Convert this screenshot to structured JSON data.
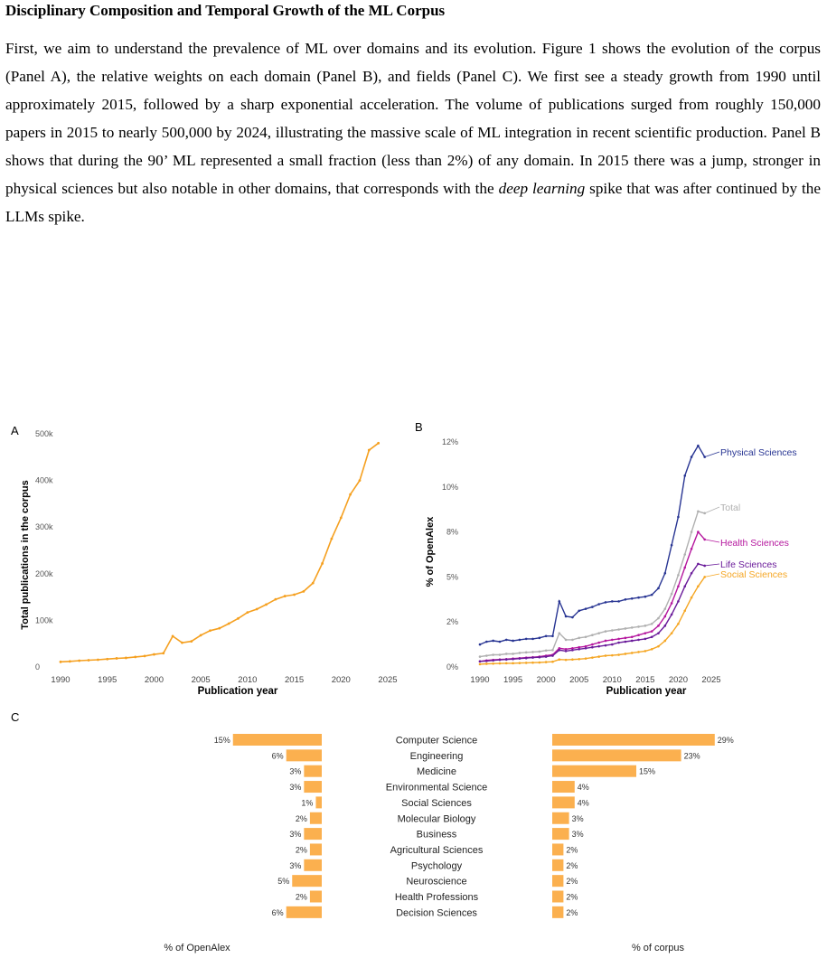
{
  "heading": "Disciplinary Composition and Temporal Growth of the ML Corpus",
  "paragraph": {
    "before_emphasis": "First, we aim to understand the prevalence of ML over domains and its evolution. Figure 1 shows the evolution of the corpus (Panel A), the relative weights on each domain (Panel B), and fields (Panel C). We first see a steady growth from 1990 until approximately 2015, followed by a sharp exponential acceleration. The volume of publications surged from roughly 150,000 papers in 2015 to nearly 500,000 by 2024, illustrating the massive scale of ML integration in recent scientific production. Panel B shows that during the 90’ ML represented a small fraction (less than 2%) of any domain. In 2015 there was a jump, stronger in physical sciences but also notable in other domains, that corresponds with the ",
    "emphasis": "deep learning",
    "after_emphasis": " spike that was after continued by the LLMs spike."
  },
  "chart_data": [
    {
      "panel": "A",
      "type": "line",
      "xlabel": "Publication year",
      "ylabel": "Total publications in the corpus",
      "xlim": [
        1990,
        2025
      ],
      "ylim": [
        0,
        500000
      ],
      "x_ticks": [
        "1990",
        "1995",
        "2000",
        "2005",
        "2010",
        "2015",
        "2020",
        "2025"
      ],
      "y_ticks": [
        "0",
        "100k",
        "200k",
        "300k",
        "400k",
        "500k"
      ],
      "color": "#f5a020",
      "x": [
        1990,
        1991,
        1992,
        1993,
        1994,
        1995,
        1996,
        1997,
        1998,
        1999,
        2000,
        2001,
        2002,
        2003,
        2004,
        2005,
        2006,
        2007,
        2008,
        2009,
        2010,
        2011,
        2012,
        2013,
        2014,
        2015,
        2016,
        2017,
        2018,
        2019,
        2020,
        2021,
        2022,
        2023,
        2024
      ],
      "values": [
        11000,
        12000,
        13500,
        14500,
        15500,
        17000,
        18500,
        19500,
        21500,
        23500,
        27000,
        29500,
        66000,
        52000,
        55000,
        68000,
        78000,
        83000,
        93000,
        104000,
        117000,
        124000,
        134000,
        145000,
        152000,
        155000,
        162000,
        180000,
        222000,
        275000,
        320000,
        370000,
        400000,
        465000,
        480000
      ]
    },
    {
      "panel": "B",
      "type": "line",
      "xlabel": "Publication year",
      "ylabel": "% of OpenAlex",
      "xlim": [
        1990,
        2025
      ],
      "ylim": [
        0,
        12
      ],
      "x_ticks": [
        "1990",
        "1995",
        "2000",
        "2005",
        "2010",
        "2015",
        "2020",
        "2025"
      ],
      "y_ticks": [
        "0%",
        "2%",
        "5%",
        "8%",
        "10%",
        "12%"
      ],
      "x": [
        1990,
        1991,
        1992,
        1993,
        1994,
        1995,
        1996,
        1997,
        1998,
        1999,
        2000,
        2001,
        2002,
        2003,
        2004,
        2005,
        2006,
        2007,
        2008,
        2009,
        2010,
        2011,
        2012,
        2013,
        2014,
        2015,
        2016,
        2017,
        2018,
        2019,
        2020,
        2021,
        2022,
        2023,
        2024
      ],
      "series": [
        {
          "name": "Physical Sciences",
          "color": "#283593",
          "values": [
            1.2,
            1.35,
            1.4,
            1.35,
            1.45,
            1.4,
            1.45,
            1.5,
            1.5,
            1.55,
            1.65,
            1.65,
            3.5,
            2.7,
            2.65,
            3.0,
            3.1,
            3.2,
            3.35,
            3.45,
            3.5,
            3.5,
            3.6,
            3.65,
            3.7,
            3.75,
            3.85,
            4.2,
            5.0,
            6.5,
            8.0,
            10.2,
            11.2,
            11.8,
            11.2
          ]
        },
        {
          "name": "Total",
          "color": "#b0b0b0",
          "values": [
            0.55,
            0.6,
            0.65,
            0.65,
            0.7,
            0.7,
            0.75,
            0.78,
            0.8,
            0.82,
            0.88,
            0.9,
            1.8,
            1.45,
            1.45,
            1.55,
            1.6,
            1.7,
            1.8,
            1.9,
            1.95,
            2.0,
            2.05,
            2.1,
            2.15,
            2.2,
            2.3,
            2.6,
            3.1,
            3.9,
            4.9,
            6.0,
            7.2,
            8.3,
            8.2
          ]
        },
        {
          "name": "Health Sciences",
          "color": "#b5179e",
          "values": [
            0.3,
            0.35,
            0.38,
            0.4,
            0.42,
            0.45,
            0.47,
            0.5,
            0.52,
            0.55,
            0.6,
            0.65,
            1.0,
            0.95,
            1.0,
            1.05,
            1.1,
            1.2,
            1.3,
            1.4,
            1.45,
            1.5,
            1.55,
            1.6,
            1.7,
            1.8,
            1.9,
            2.2,
            2.7,
            3.4,
            4.3,
            5.3,
            6.3,
            7.2,
            6.8
          ]
        },
        {
          "name": "Life Sciences",
          "color": "#6a1b9a",
          "values": [
            0.3,
            0.32,
            0.35,
            0.38,
            0.4,
            0.42,
            0.45,
            0.47,
            0.5,
            0.52,
            0.55,
            0.6,
            0.9,
            0.85,
            0.9,
            0.95,
            1.0,
            1.05,
            1.1,
            1.15,
            1.2,
            1.3,
            1.35,
            1.4,
            1.45,
            1.5,
            1.6,
            1.8,
            2.2,
            2.8,
            3.5,
            4.3,
            5.0,
            5.5,
            5.4
          ]
        },
        {
          "name": "Social Sciences",
          "color": "#f5a623",
          "values": [
            0.15,
            0.17,
            0.18,
            0.19,
            0.2,
            0.2,
            0.21,
            0.22,
            0.23,
            0.24,
            0.26,
            0.28,
            0.4,
            0.38,
            0.4,
            0.42,
            0.45,
            0.5,
            0.55,
            0.6,
            0.62,
            0.65,
            0.7,
            0.75,
            0.8,
            0.85,
            0.95,
            1.1,
            1.4,
            1.8,
            2.3,
            3.0,
            3.7,
            4.3,
            4.8
          ]
        }
      ]
    },
    {
      "panel": "C",
      "type": "bar",
      "color": "#fbb04f",
      "categories": [
        "Computer Science",
        "Engineering",
        "Medicine",
        "Environmental Science",
        "Social Sciences",
        "Molecular Biology",
        "Business",
        "Agricultural Sciences",
        "Psychology",
        "Neuroscience",
        "Health Professions",
        "Decision Sciences"
      ],
      "left_label": "% of OpenAlex",
      "left_values": [
        15,
        6,
        3,
        3,
        1,
        2,
        3,
        2,
        3,
        5,
        2,
        6
      ],
      "right_label": "% of corpus",
      "right_values": [
        29,
        23,
        15,
        4,
        4,
        3,
        3,
        2,
        2,
        2,
        2,
        2
      ]
    }
  ]
}
